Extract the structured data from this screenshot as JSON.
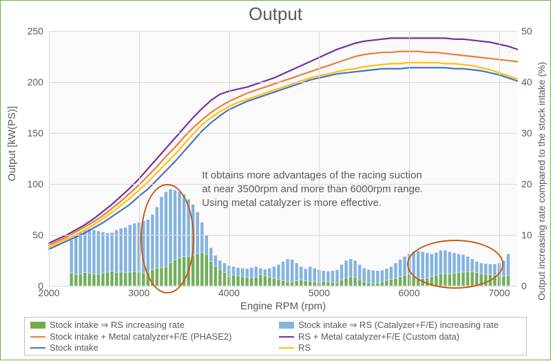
{
  "chart": {
    "type": "combo-line-bar-dual-axis",
    "title": "Output",
    "title_fontsize": 26,
    "title_color": "#595959",
    "background_color": "#ffffff",
    "plot_background": "#fafafa",
    "border_color": "#70ad47",
    "grid_color": "#d9d9d9",
    "font_family": "Segoe UI",
    "label_fontsize": 15,
    "tick_fontsize": 14,
    "label_color": "#595959",
    "x": {
      "label": "Engine RPM (rpm)",
      "min": 2000,
      "max": 7200,
      "ticks": [
        2000,
        3000,
        4000,
        5000,
        6000,
        7000
      ],
      "gridlines_at_ticks": true
    },
    "y_left": {
      "label": "Output [kW(PS)]",
      "min": 0,
      "max": 250,
      "ticks": [
        0,
        50,
        100,
        150,
        200,
        250
      ]
    },
    "y_right": {
      "label": "Output increasing rate compared to the stock intake (%)",
      "min": 0,
      "max": 50,
      "ticks": [
        0,
        10,
        20,
        30,
        40,
        50
      ]
    },
    "bars": {
      "x_start": 2250,
      "x_step": 50,
      "count": 98,
      "bar_width_rpm": 38,
      "series": [
        {
          "id": "green_rate",
          "label": "Stock intake ⇒ RS increasing rate",
          "axis": "right",
          "fill": "#70ad47",
          "fill_opacity": 0.85,
          "stroke": "#ffffff",
          "stroke_width": 0.5,
          "values_pct": [
            2.5,
            2.2,
            2.3,
            2.6,
            2.5,
            2.4,
            2.3,
            2.5,
            2.7,
            2.9,
            2.6,
            2.7,
            2.6,
            2.7,
            2.8,
            2.7,
            2.5,
            2.7,
            3.2,
            3.5,
            3.6,
            3.7,
            4.5,
            5.1,
            5.5,
            5.7,
            5.8,
            5.9,
            6.3,
            6.5,
            6.2,
            4.8,
            3.8,
            3.2,
            2.6,
            1.8,
            2.1,
            2.0,
            1.8,
            1.7,
            1.6,
            1.7,
            2.2,
            2.0,
            1.7,
            1.5,
            1.3,
            1.0,
            0.8,
            0.8,
            1.0,
            1.2,
            1.0,
            0.9,
            0.8,
            0.7,
            0.9,
            0.8,
            0.7,
            0.6,
            1.2,
            1.6,
            1.8,
            1.7,
            1.2,
            0.8,
            0.6,
            0.5,
            0.6,
            0.8,
            1.1,
            1.3,
            1.5,
            1.8,
            2.1,
            2.3,
            1.9,
            1.6,
            1.4,
            1.5,
            1.8,
            2.1,
            2.4,
            2.4,
            2.3,
            2.5,
            2.6,
            2.7,
            2.8,
            2.8,
            2.6,
            2.4,
            2.3,
            2.2,
            2.1,
            2.0,
            1.9,
            2.0
          ]
        },
        {
          "id": "blue_rate",
          "label": "Stock intake ⇒ RS (Catalyzer+F/E) increasing rate",
          "axis": "right",
          "fill": "#5b9bd5",
          "fill_opacity": 0.75,
          "stroke": "#ffffff",
          "stroke_width": 0.5,
          "values_pct": [
            9.0,
            10.0,
            10.5,
            11.0,
            11.2,
            11.0,
            10.8,
            10.6,
            10.4,
            10.5,
            11.0,
            11.3,
            11.5,
            12.0,
            12.3,
            12.5,
            12.8,
            13.0,
            14.0,
            15.5,
            17.5,
            18.5,
            19.0,
            18.8,
            18.5,
            18.0,
            17.0,
            16.0,
            14.5,
            12.5,
            10.0,
            7.5,
            6.0,
            5.0,
            4.5,
            4.0,
            3.8,
            3.6,
            3.5,
            3.4,
            3.6,
            3.8,
            3.5,
            3.3,
            3.5,
            3.8,
            4.2,
            4.8,
            5.3,
            5.2,
            4.5,
            3.8,
            3.4,
            3.8,
            3.5,
            3.2,
            3.0,
            2.9,
            3.0,
            3.2,
            4.2,
            5.0,
            5.3,
            5.0,
            4.2,
            3.5,
            3.2,
            3.1,
            3.0,
            3.1,
            3.4,
            3.8,
            4.5,
            5.2,
            5.8,
            6.3,
            6.8,
            6.9,
            6.7,
            6.5,
            6.3,
            6.6,
            7.0,
            7.0,
            6.7,
            6.5,
            6.3,
            6.2,
            5.8,
            5.3,
            4.8,
            4.5,
            4.4,
            4.3,
            4.3,
            4.5,
            5.0,
            6.3
          ]
        }
      ]
    },
    "lines": {
      "x_start": 2000,
      "x_step": 100,
      "count": 53,
      "stroke_width": 2.2,
      "series": [
        {
          "id": "stock_intake",
          "label": "Stock intake",
          "color": "#4472c4",
          "axis": "left",
          "values": [
            36,
            40,
            44,
            48,
            52,
            57,
            62,
            68,
            74,
            80,
            88,
            95,
            104,
            113,
            122,
            132,
            142,
            152,
            160,
            167,
            173,
            177,
            181,
            184,
            187,
            190,
            193,
            196,
            199,
            202,
            204,
            206,
            208,
            209,
            210,
            211,
            212,
            213,
            213,
            213,
            214,
            214,
            214,
            214,
            214,
            213,
            213,
            212,
            211,
            209,
            207,
            204,
            201
          ]
        },
        {
          "id": "rs",
          "label": "RS",
          "color": "#ffc000",
          "axis": "left",
          "values": [
            38,
            42,
            46,
            50,
            55,
            60,
            66,
            72,
            79,
            86,
            94,
            102,
            111,
            120,
            129,
            139,
            149,
            158,
            165,
            171,
            176,
            180,
            183,
            186,
            189,
            192,
            195,
            198,
            201,
            204,
            206,
            208,
            210,
            212,
            213,
            215,
            216,
            217,
            218,
            218,
            219,
            219,
            219,
            219,
            218,
            218,
            217,
            216,
            214,
            212,
            209,
            206,
            203
          ]
        },
        {
          "id": "stock_metal_fe",
          "label": "Stock intake + Metal catalyzer+F/E (PHASE2)",
          "color": "#ed7d31",
          "axis": "left",
          "values": [
            40,
            44,
            48,
            53,
            58,
            63,
            69,
            76,
            83,
            91,
            99,
            108,
            117,
            127,
            136,
            146,
            155,
            163,
            170,
            176,
            181,
            185,
            189,
            192,
            195,
            198,
            201,
            204,
            207,
            210,
            213,
            216,
            219,
            222,
            225,
            227,
            228,
            229,
            229,
            230,
            230,
            230,
            229,
            229,
            228,
            227,
            226,
            225,
            224,
            223,
            222,
            221,
            220
          ]
        },
        {
          "id": "rs_metal_fe",
          "label": "RS + Metal catalyzer+F/E (Custom data)",
          "color": "#7030a0",
          "axis": "left",
          "values": [
            42,
            46,
            50,
            55,
            60,
            66,
            73,
            80,
            88,
            96,
            105,
            115,
            125,
            135,
            145,
            155,
            165,
            174,
            182,
            188,
            191,
            193,
            195,
            198,
            201,
            204,
            208,
            212,
            216,
            220,
            224,
            228,
            232,
            235,
            238,
            240,
            241,
            242,
            243,
            243,
            243,
            243,
            243,
            243,
            243,
            242,
            242,
            241,
            240,
            239,
            237,
            235,
            232
          ]
        }
      ]
    },
    "ellipses": [
      {
        "cx_rpm": 3300,
        "cy_right_pct": 9.5,
        "rx_rpm": 280,
        "ry_right_pct": 10.5,
        "stroke": "#c55a11",
        "stroke_width": 2
      },
      {
        "cx_rpm": 6500,
        "cy_right_pct": 4.5,
        "rx_rpm": 520,
        "ry_right_pct": 4.5,
        "stroke": "#c55a11",
        "stroke_width": 2
      }
    ],
    "annotation": {
      "text_lines": [
        "It obtains more advantages of the racing suction",
        "at near 3500rpm and more than 6000rpm range.",
        "Using metal catalyzer is more effective."
      ],
      "fontsize": 15,
      "color": "#595959",
      "pos_rpm": 3700,
      "pos_left_kw": 115
    },
    "legend": {
      "border_color": "#bfbfbf",
      "fontsize": 13,
      "columns": 2,
      "items": [
        {
          "kind": "swatch",
          "color": "#70ad47",
          "label_ref": "bars.series.0.label"
        },
        {
          "kind": "swatch",
          "color": "#5b9bd5",
          "label_ref": "bars.series.1.label",
          "opacity": 0.75
        },
        {
          "kind": "line",
          "color": "#ed7d31",
          "label_ref": "lines.series.2.label"
        },
        {
          "kind": "line",
          "color": "#7030a0",
          "label_ref": "lines.series.3.label"
        },
        {
          "kind": "line",
          "color": "#4472c4",
          "label_ref": "lines.series.0.label"
        },
        {
          "kind": "line",
          "color": "#ffc000",
          "label_ref": "lines.series.1.label"
        }
      ]
    }
  }
}
